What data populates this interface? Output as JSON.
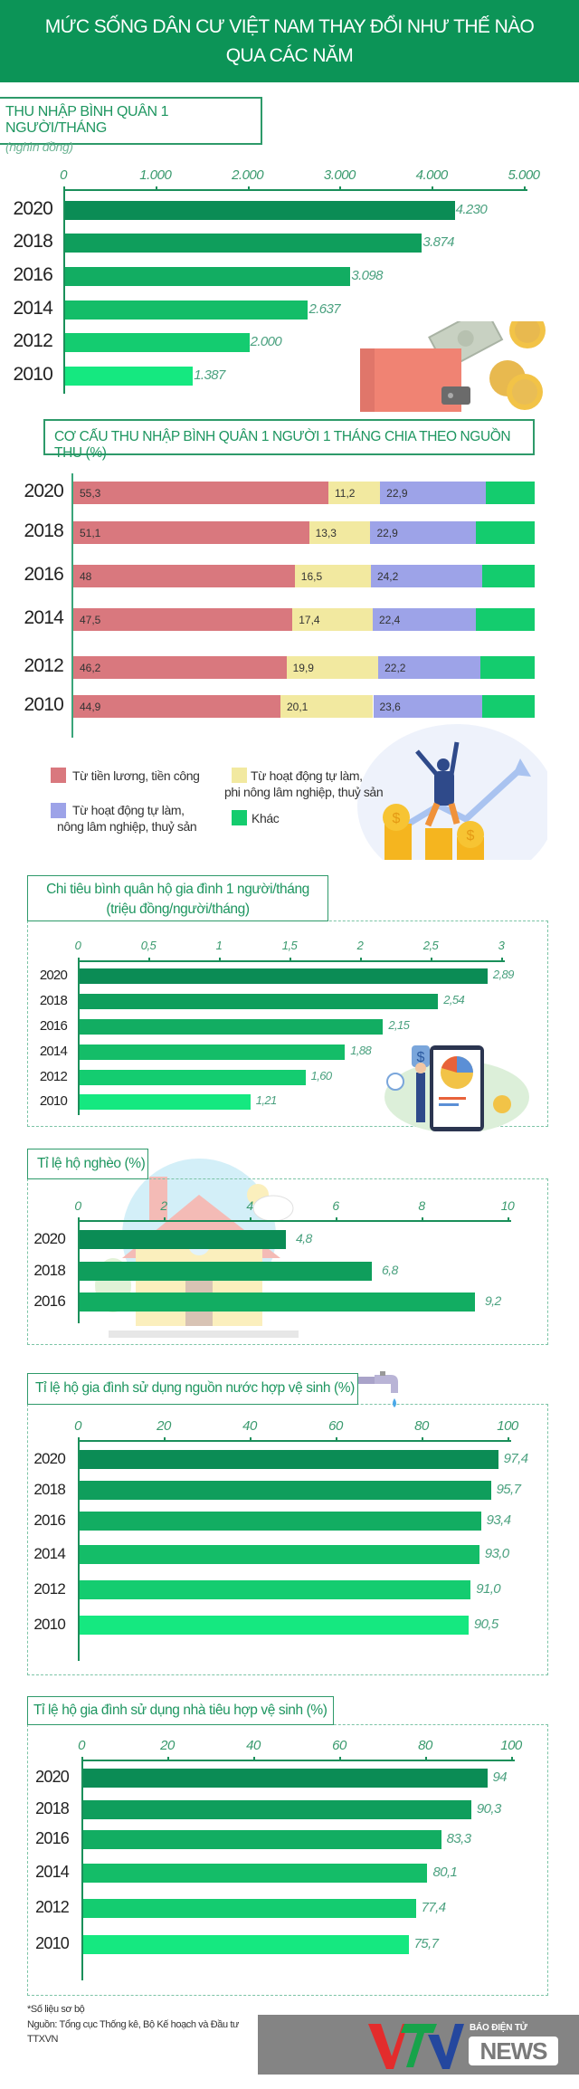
{
  "header": {
    "title_line1": "MỨC SỐNG DÂN CƯ VIỆT NAM THAY ĐỔI NHƯ THẾ NÀO",
    "title_line2": "QUA CÁC NĂM"
  },
  "colors": {
    "header": "#0c9457",
    "year_bars": [
      "#0b8c55",
      "#0f9e5c",
      "#12ad62",
      "#14bd68",
      "#14cc70",
      "#15e880"
    ],
    "salary": "#d9787e",
    "non_agri": "#f2e9a0",
    "agri": "#9da3e8",
    "other": "#14cc6e"
  },
  "chart_data": [
    {
      "type": "bar",
      "orientation": "horizontal",
      "title": "THU NHẬP BÌNH QUÂN 1 NGƯỜI/THÁNG",
      "subtitle": "(nghìn đồng)",
      "categories": [
        "2020",
        "2018",
        "2016",
        "2014",
        "2012",
        "2010"
      ],
      "values": [
        4230,
        3874,
        3098,
        2637,
        2000,
        1387
      ],
      "value_labels": [
        "4.230",
        "3.874",
        "3.098",
        "2.637",
        "2.000",
        "1.387"
      ],
      "ticks": [
        0,
        1000,
        2000,
        3000,
        4000,
        5000
      ],
      "tick_labels": [
        "0",
        "1.000",
        "2.000",
        "3.000",
        "4.000",
        "5.000"
      ],
      "xlim": [
        0,
        5000
      ]
    },
    {
      "type": "bar",
      "orientation": "horizontal",
      "stacked": true,
      "title": "CƠ CẤU THU NHẬP BÌNH QUÂN 1 NGƯỜI 1 THÁNG CHIA THEO NGUỒN THU (%)",
      "categories": [
        "2020",
        "2018",
        "2016",
        "2014",
        "2012",
        "2010"
      ],
      "series": [
        {
          "name": "Từ tiền lương, tiền công",
          "values": [
            55.3,
            51.1,
            48,
            47.5,
            46.2,
            44.9
          ],
          "labels": [
            "55,3",
            "51,1",
            "48",
            "47,5",
            "46,2",
            "44,9"
          ]
        },
        {
          "name": "Từ hoạt động tự làm, phi nông lâm nghiệp, thuỷ sản",
          "values": [
            11.2,
            13.3,
            16.5,
            17.4,
            19.9,
            20.1
          ],
          "labels": [
            "11,2",
            "13,3",
            "16,5",
            "17,4",
            "19,9",
            "20,1"
          ]
        },
        {
          "name": "Từ hoạt động tự làm, nông lâm nghiệp, thuỷ sản",
          "values": [
            22.9,
            22.9,
            24.2,
            22.4,
            22.2,
            23.6
          ],
          "labels": [
            "22,9",
            "22,9",
            "24,2",
            "22,4",
            "22,2",
            "23,6"
          ]
        },
        {
          "name": "Khác",
          "values": [
            10.6,
            12.7,
            11.3,
            12.7,
            11.7,
            11.4
          ]
        }
      ],
      "legend": {
        "salary_l1": "Từ tiền lương, tiền công",
        "non_agri_l1": "Từ hoạt động tự làm,",
        "non_agri_l2": "phi nông lâm nghiệp, thuỷ sản",
        "agri_l1": "Từ hoạt động tự làm,",
        "agri_l2": "nông lâm nghiệp, thuỷ sản",
        "other": "Khác",
        "placement": "bottom-left"
      },
      "xlim": [
        0,
        100
      ]
    },
    {
      "type": "bar",
      "orientation": "horizontal",
      "title": "Chi tiêu bình quân hộ gia đình 1 người/tháng",
      "subtitle": "(triệu đồng/người/tháng)",
      "categories": [
        "2020",
        "2018",
        "2016",
        "2014",
        "2012",
        "2010"
      ],
      "values": [
        2.89,
        2.54,
        2.15,
        1.88,
        1.6,
        1.21
      ],
      "value_labels": [
        "2,89",
        "2,54",
        "2,15",
        "1,88",
        "1,60",
        "1,21"
      ],
      "ticks": [
        0,
        0.5,
        1,
        1.5,
        2,
        2.5,
        3
      ],
      "tick_labels": [
        "0",
        "0,5",
        "1",
        "1,5",
        "2",
        "2,5",
        "3"
      ],
      "xlim": [
        0,
        3
      ]
    },
    {
      "type": "bar",
      "orientation": "horizontal",
      "title": "Tỉ lệ hộ nghèo (%)",
      "categories": [
        "2020",
        "2018",
        "2016"
      ],
      "values": [
        4.8,
        6.8,
        9.2
      ],
      "value_labels": [
        "4,8",
        "6,8",
        "9,2"
      ],
      "ticks": [
        0,
        2,
        4,
        6,
        8,
        10
      ],
      "tick_labels": [
        "0",
        "2",
        "4",
        "6",
        "8",
        "10"
      ],
      "xlim": [
        0,
        10
      ]
    },
    {
      "type": "bar",
      "orientation": "horizontal",
      "title": "Tỉ lệ hộ gia đình sử dụng nguồn nước hợp vệ sinh (%)",
      "categories": [
        "2020",
        "2018",
        "2016",
        "2014",
        "2012",
        "2010"
      ],
      "values": [
        97.4,
        95.7,
        93.4,
        93.0,
        91.0,
        90.5
      ],
      "value_labels": [
        "97,4",
        "95,7",
        "93,4",
        "93,0",
        "91,0",
        "90,5"
      ],
      "ticks": [
        0,
        20,
        40,
        60,
        80,
        100
      ],
      "tick_labels": [
        "0",
        "20",
        "40",
        "60",
        "80",
        "100"
      ],
      "xlim": [
        0,
        100
      ]
    },
    {
      "type": "bar",
      "orientation": "horizontal",
      "title": "Tỉ lệ hộ gia đình sử dụng nhà tiêu hợp vệ sinh (%)",
      "categories": [
        "2020",
        "2018",
        "2016",
        "2014",
        "2012",
        "2010"
      ],
      "values": [
        94,
        90.3,
        83.3,
        80.1,
        77.4,
        75.7
      ],
      "value_labels": [
        "94",
        "90,3",
        "83,3",
        "80,1",
        "77,4",
        "75,7"
      ],
      "ticks": [
        0,
        20,
        40,
        60,
        80,
        100
      ],
      "tick_labels": [
        "0",
        "20",
        "40",
        "60",
        "80",
        "100"
      ],
      "xlim": [
        0,
        100
      ]
    }
  ],
  "footer": {
    "note": "*Số liệu sơ bộ",
    "source": "Nguồn: Tổng cục Thống kê, Bộ Kế hoạch và Đầu tư",
    "agency": "TTXVN",
    "logo_text": "VTV",
    "logo_tagline": "BÁO ĐIỆN TỬ",
    "logo_news": "NEWS"
  }
}
